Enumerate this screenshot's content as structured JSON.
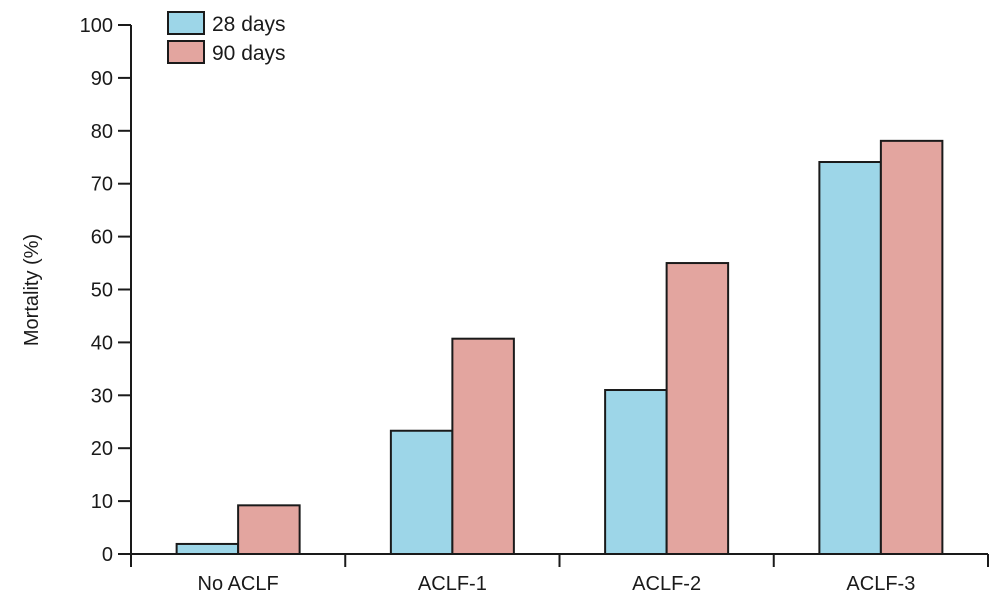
{
  "chart_data": {
    "type": "bar",
    "title": "",
    "xlabel": "",
    "ylabel": "Mortality (%)",
    "ylim": [
      0,
      100
    ],
    "yticks": [
      0,
      10,
      20,
      30,
      40,
      50,
      60,
      70,
      80,
      90,
      100
    ],
    "categories": [
      "No ACLF",
      "ACLF-1",
      "ACLF-2",
      "ACLF-3"
    ],
    "series": [
      {
        "name": "28 days",
        "color": "#9dd6e8",
        "values": [
          1.9,
          23.3,
          31.0,
          74.1
        ]
      },
      {
        "name": "90 days",
        "color": "#e3a59f",
        "values": [
          9.2,
          40.7,
          55.0,
          78.1
        ]
      }
    ],
    "grid": false,
    "legend": "top-left",
    "bar_outline_color": "#1a1a1a"
  }
}
